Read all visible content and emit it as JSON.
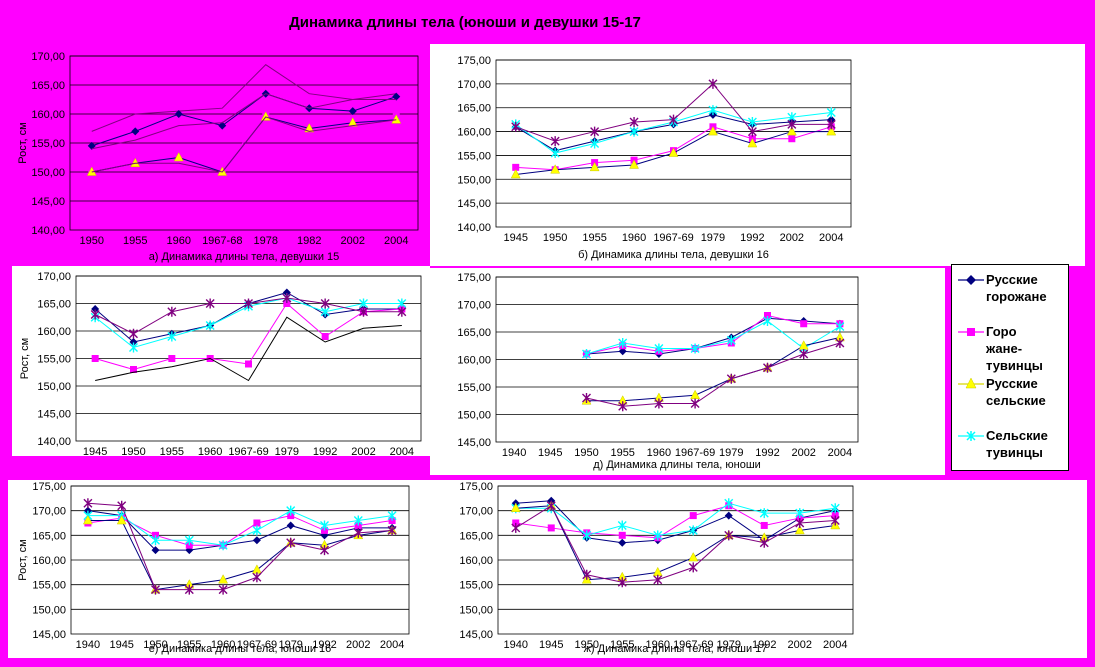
{
  "title": "Динамика длины тела (юноши и девушки 15-17",
  "legend": [
    {
      "name": "Русские\nгорожане",
      "color": "#000080",
      "marker": "diamond"
    },
    {
      "name": "Горо\nжане-\nтувинцы",
      "color": "#ff00ff",
      "marker": "square"
    },
    {
      "name": "Русские\nсельские",
      "color": "#ffff00",
      "marker": "triangle"
    },
    {
      "name": "Сельские\nтувинцы",
      "color": "#00ffff",
      "marker": "star"
    }
  ],
  "chart_data": [
    {
      "id": "a",
      "type": "line",
      "caption": "а) Динамика длины тела, девушки 15",
      "ylabel": "Рост, см",
      "ylim": [
        140,
        170
      ],
      "yticks": [
        "140,00",
        "145,00",
        "150,00",
        "155,00",
        "160,00",
        "165,00",
        "170,00"
      ],
      "categories": [
        "1950",
        "1955",
        "1960",
        "1967-68",
        "1978",
        "1982",
        "2002",
        "2004"
      ],
      "series": [
        {
          "values": [
            157,
            160,
            160.5,
            161,
            168.5,
            163.5,
            162.5,
            163.5
          ],
          "marker": "line",
          "color": "#800080"
        },
        {
          "values": [
            154.5,
            157,
            160,
            158,
            163.5,
            161,
            160.5,
            163
          ],
          "marker": "diamond",
          "color": "#000080"
        },
        {
          "values": [
            154,
            155.5,
            158,
            158.5,
            163.5,
            161,
            162.5,
            162.5
          ],
          "marker": "line",
          "color": "#800080"
        },
        {
          "values": [
            150,
            152,
            152.5,
            150.5,
            160,
            157.5,
            158.5,
            159.5
          ],
          "marker": "square",
          "color": "#ff00ff"
        },
        {
          "values": [
            150,
            151.5,
            152.5,
            150,
            159.5,
            157.5,
            158.5,
            159
          ],
          "marker": "triangle",
          "color": "#ffff00"
        },
        {
          "values": [
            150,
            151.5,
            151.5,
            150,
            159.5,
            157,
            158,
            159
          ],
          "marker": "line",
          "color": "#800080"
        }
      ]
    },
    {
      "id": "b",
      "type": "line",
      "caption": "б) Динамика длины тела, девушки 16",
      "ylabel": "",
      "ylim": [
        140,
        175
      ],
      "yticks": [
        "140,00",
        "145,00",
        "150,00",
        "155,00",
        "160,00",
        "165,00",
        "170,00",
        "175,00"
      ],
      "categories": [
        "1945",
        "1950",
        "1955",
        "1960",
        "1967-69",
        "1979",
        "1992",
        "2002",
        "2004"
      ],
      "x_offset": 0.5,
      "series": [
        {
          "values": [
            161,
            156,
            158,
            160,
            161.5,
            163.5,
            161.5,
            162,
            162.5
          ],
          "marker": "diamond",
          "color": "#000080"
        },
        {
          "values": [
            152.5,
            152,
            153.5,
            154,
            156,
            161,
            158.5,
            158.5,
            161
          ],
          "marker": "square",
          "color": "#ff00ff"
        },
        {
          "values": [
            151,
            152,
            152.5,
            153,
            155.5,
            160,
            157.5,
            160,
            160
          ],
          "marker": "triangle",
          "color": "#ffff00"
        },
        {
          "values": [
            161.5,
            155.5,
            157.5,
            160,
            162,
            164.5,
            162,
            163,
            164
          ],
          "marker": "star",
          "color": "#00ffff"
        },
        {
          "values": [
            161,
            158,
            160,
            162,
            162.5,
            170,
            160,
            161.5,
            161.5
          ],
          "marker": "star",
          "color": "#800080"
        }
      ]
    },
    {
      "id": "v",
      "type": "line",
      "caption": "в) Динамика длины тела, девушки 17",
      "ylabel": "Рост, см",
      "ylim": [
        140,
        170
      ],
      "yticks": [
        "140,00",
        "145,00",
        "150,00",
        "155,00",
        "160,00",
        "165,00",
        "170,00"
      ],
      "categories": [
        "1945",
        "1950",
        "1955",
        "1960",
        "1967-69",
        "1979",
        "1992",
        "2002",
        "2004"
      ],
      "series": [
        {
          "values": [
            164,
            158,
            159.5,
            161,
            165,
            167,
            163,
            164,
            164
          ],
          "marker": "diamond",
          "color": "#000080"
        },
        {
          "values": [
            155,
            153,
            155,
            155,
            154,
            165,
            159,
            163.5,
            164
          ],
          "marker": "square",
          "color": "#ff00ff"
        },
        {
          "values": [
            162.5,
            157,
            159,
            161,
            164.5,
            166,
            163.5,
            165,
            165
          ],
          "marker": "star",
          "color": "#00ffff"
        },
        {
          "values": [
            163,
            159.5,
            163.5,
            165,
            165,
            166,
            165,
            163.5,
            163.5
          ],
          "marker": "star",
          "color": "#800080"
        },
        {
          "values": [
            151,
            152.5,
            153.5,
            155,
            151,
            162.5,
            158,
            160.5,
            161
          ],
          "marker": "line",
          "color": "#000000"
        }
      ]
    },
    {
      "id": "g",
      "type": "line",
      "caption": "д) Динамика длины тела, юноши",
      "ylabel": "",
      "ylim": [
        145,
        175
      ],
      "yticks": [
        "145,00",
        "150,00",
        "155,00",
        "160,00",
        "165,00",
        "170,00",
        "175,00"
      ],
      "categories": [
        "1940",
        "1945",
        "1950",
        "1955",
        "1960",
        "1967-69",
        "1979",
        "1992",
        "2002",
        "2004"
      ],
      "x_offset": 0.5,
      "series": [
        {
          "x": [
            3,
            4,
            5,
            6,
            7,
            8,
            9,
            10
          ],
          "values": [
            161,
            161.5,
            161,
            162,
            164,
            167.5,
            167,
            166.5
          ],
          "marker": "diamond",
          "color": "#000080"
        },
        {
          "x": [
            3,
            4,
            5,
            6,
            7,
            8,
            9,
            10
          ],
          "values": [
            161,
            162.5,
            161.5,
            162,
            163,
            168,
            166.5,
            166.5
          ],
          "marker": "square",
          "color": "#ff00ff"
        },
        {
          "x": [
            3,
            4,
            5,
            6,
            7,
            8,
            9,
            10
          ],
          "values": [
            161,
            163,
            162,
            162,
            163.5,
            167,
            162,
            166
          ],
          "marker": "star",
          "color": "#00ffff"
        },
        {
          "x": [
            3,
            4,
            5,
            6,
            7,
            8,
            9,
            10
          ],
          "values": [
            152.5,
            152.5,
            153,
            153.5,
            156.5,
            158.5,
            162.5,
            164
          ],
          "marker": "triangle",
          "color": "#ffff00"
        },
        {
          "x": [
            3,
            4,
            5,
            6,
            7,
            8,
            9,
            10
          ],
          "values": [
            153,
            151.5,
            152,
            152,
            156.5,
            158.5,
            161,
            163
          ],
          "marker": "star",
          "color": "#800080"
        }
      ]
    },
    {
      "id": "e",
      "type": "line",
      "caption": "е) Динамика длины тела, юноши 16",
      "ylabel": "Рост, см",
      "ylim": [
        145,
        175
      ],
      "yticks": [
        "145,00",
        "150,00",
        "155,00",
        "160,00",
        "165,00",
        "170,00",
        "175,00"
      ],
      "categories": [
        "1940",
        "1945",
        "1950",
        "1955",
        "1960",
        "1967-69",
        "1979",
        "1992",
        "2002",
        "2004"
      ],
      "series": [
        {
          "values": [
            170,
            169,
            162,
            162,
            163,
            164,
            167,
            165,
            166.5,
            166.5
          ],
          "marker": "diamond",
          "color": "#000080"
        },
        {
          "values": [
            167.5,
            168.5,
            165,
            163,
            163,
            167.5,
            169,
            166,
            167,
            168
          ],
          "marker": "square",
          "color": "#ff00ff"
        },
        {
          "values": [
            169,
            169,
            164,
            164,
            163,
            166,
            170,
            167,
            168,
            169
          ],
          "marker": "star",
          "color": "#00ffff"
        },
        {
          "values": [
            168,
            168,
            154,
            155,
            156,
            158,
            163.5,
            163,
            165,
            166
          ],
          "marker": "triangle",
          "color": "#ffff00"
        },
        {
          "values": [
            171.5,
            171,
            154,
            154,
            154,
            156.5,
            163.5,
            162,
            165.5,
            166
          ],
          "marker": "star",
          "color": "#800080"
        }
      ]
    },
    {
      "id": "zh",
      "type": "line",
      "caption": "ж) Динамика длины тела, юноши 17",
      "ylabel": "",
      "ylim": [
        145,
        175
      ],
      "yticks": [
        "145,00",
        "150,00",
        "155,00",
        "160,00",
        "165,00",
        "170,00",
        "175,00"
      ],
      "categories": [
        "1940",
        "1945",
        "1950",
        "1955",
        "1960",
        "1967-69",
        "1979",
        "1992",
        "2002",
        "2004"
      ],
      "x_offset": 0.5,
      "series": [
        {
          "x": [
            1,
            2,
            3,
            4,
            5,
            6,
            7,
            8,
            9,
            10
          ],
          "values": [
            171.5,
            172,
            164.5,
            163.5,
            164,
            166,
            169,
            164,
            168.5,
            170
          ],
          "marker": "diamond",
          "color": "#000080"
        },
        {
          "x": [
            1,
            2,
            3,
            4,
            5,
            6,
            7,
            8,
            9,
            10
          ],
          "values": [
            167.5,
            166.5,
            165.5,
            165,
            164.5,
            169,
            171,
            167,
            168.5,
            169
          ],
          "marker": "square",
          "color": "#ff00ff"
        },
        {
          "x": [
            1,
            2,
            3,
            4,
            5,
            6,
            7,
            8,
            9,
            10
          ],
          "values": [
            170.5,
            170.5,
            165,
            167,
            165,
            166,
            171.5,
            169.5,
            169.5,
            170.5
          ],
          "marker": "star",
          "color": "#00ffff"
        },
        {
          "x": [
            1,
            2,
            3,
            4,
            5,
            6,
            7,
            8,
            9,
            10
          ],
          "values": [
            170.5,
            171,
            156,
            156.5,
            157.5,
            160.5,
            165,
            164.5,
            166,
            167
          ],
          "marker": "triangle",
          "color": "#ffff00"
        },
        {
          "x": [
            1,
            2,
            3,
            4,
            5,
            6,
            7,
            8,
            9,
            10
          ],
          "values": [
            166.5,
            171,
            157,
            155.5,
            156,
            158.5,
            165,
            163.5,
            167.5,
            168
          ],
          "marker": "star",
          "color": "#800080"
        }
      ]
    }
  ]
}
